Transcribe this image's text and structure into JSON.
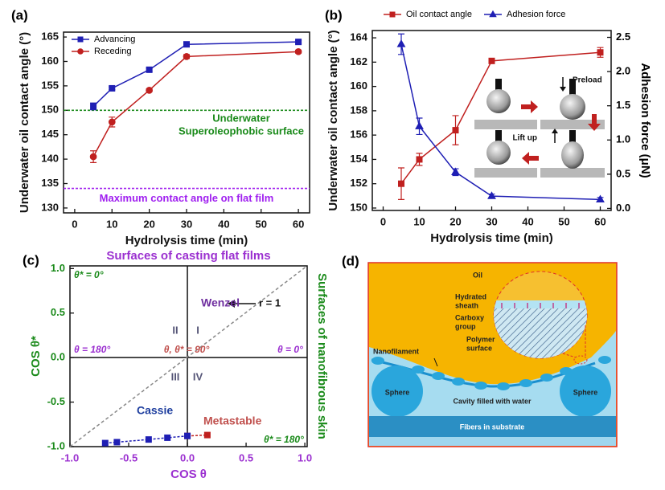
{
  "chart_data": [
    {
      "type": "line",
      "panel_label": "(a)",
      "xlabel": "Hydrolysis time (min)",
      "ylabel": "Underwater oil contact angle (°)",
      "x": [
        5,
        10,
        20,
        30,
        60
      ],
      "xlim": [
        -3,
        63
      ],
      "xticks": [
        0,
        10,
        20,
        30,
        40,
        50,
        60
      ],
      "ylim": [
        129,
        166
      ],
      "yticks": [
        130,
        135,
        140,
        145,
        150,
        155,
        160,
        165
      ],
      "legend": "upper left",
      "series": [
        {
          "name": "Advancing",
          "color": "#1f1fb4",
          "marker": "square",
          "values": [
            150.8,
            154.5,
            158.3,
            163.5,
            164
          ],
          "errors": [
            0.7,
            0.3,
            0.3,
            0.3,
            0.3
          ]
        },
        {
          "name": "Receding",
          "color": "#c0201f",
          "marker": "circle",
          "values": [
            140.5,
            147.6,
            154.1,
            161,
            162
          ],
          "errors": [
            1.2,
            1,
            0.3,
            0.4,
            0.3
          ]
        }
      ],
      "reference_lines": [
        {
          "y": 150,
          "color": "#1a8a1a",
          "labels": [
            "Underwater",
            "Superoleophobic surface"
          ]
        },
        {
          "y": 134,
          "color": "#a020f0",
          "labels": [
            "Maximum contact angle on flat film"
          ]
        }
      ]
    },
    {
      "type": "line",
      "panel_label": "(b)",
      "xlabel": "Hydrolysis time (min)",
      "ylabel": "Underwater oil contact angle (°)",
      "y2label": "Adhesion force (μN)",
      "x": [
        5,
        10,
        20,
        30,
        60
      ],
      "xlim": [
        -3,
        63
      ],
      "xticks": [
        0,
        10,
        20,
        30,
        40,
        50,
        60
      ],
      "ylim": [
        149.8,
        164.6
      ],
      "yticks": [
        150,
        152,
        154,
        156,
        158,
        160,
        162,
        164
      ],
      "y2lim": [
        -0.03,
        2.6
      ],
      "y2ticks": [
        {
          "value": 0,
          "label": "0.0"
        },
        0.5,
        {
          "value": 1,
          "label": "1.0"
        },
        1.5,
        {
          "value": 2,
          "label": "2.0"
        },
        2.5
      ],
      "legend": "top",
      "series": [
        {
          "name": "Oil contact angle",
          "color": "#c0201f",
          "marker": "square",
          "values": [
            152,
            154,
            156.4,
            162.1,
            162.8
          ],
          "errors": [
            1.3,
            0.5,
            1.2,
            0.1,
            0.4
          ]
        },
        {
          "name": "Adhesion force",
          "color": "#1f1fb4",
          "marker": "triangle",
          "axis": "y2",
          "values": [
            2.4,
            1.2,
            0.53,
            0.18,
            0.13
          ],
          "errors": [
            0.15,
            0.12,
            0.05,
            0.03,
            0.03
          ]
        }
      ],
      "annotations": [
        "Preload",
        "Lift up"
      ]
    },
    {
      "type": "line",
      "panel_label": "(c)",
      "title": "Surfaces of casting flat films",
      "right_label": "Surfaces of nanofibrous skin",
      "xlabel": "COS θ",
      "ylabel": "COS θ*",
      "xaxis_color": "#9b30d0",
      "yaxis_color": "#1a8a1a",
      "xlim": [
        -1,
        1.02
      ],
      "xticks": [
        {
          "value": -1,
          "label": "-1.0"
        },
        -0.5,
        {
          "value": 0,
          "label": "0.0"
        },
        0.5,
        {
          "value": 1,
          "label": "1.0"
        }
      ],
      "ylim": [
        -1,
        1.03
      ],
      "yticks": [
        {
          "value": -1,
          "label": "-1.0"
        },
        -0.5,
        {
          "value": 0,
          "label": "0.0"
        },
        0.5,
        {
          "value": 1,
          "label": "1.0"
        }
      ],
      "series": [
        {
          "name": "Metastable",
          "color": "#c0201f",
          "marker": "square",
          "linestyle": "dashed",
          "x": [
            0,
            0.17
          ],
          "values": [
            -0.88,
            -0.87
          ]
        },
        {
          "name": "Cassie",
          "color": "#1f1fb4",
          "marker": "square",
          "linestyle": "dashed",
          "x": [
            -0.7,
            -0.6,
            -0.33,
            -0.17,
            0
          ],
          "values": [
            -0.96,
            -0.95,
            -0.92,
            -0.9,
            -0.88
          ]
        }
      ],
      "annotations": [
        "θ* = 0°",
        "θ = 180°",
        "θ, θ* = 90°",
        "θ = 0°",
        "θ* = 180°",
        "Wenzel",
        "r = 1",
        "I",
        "II",
        "III",
        "IV"
      ]
    }
  ],
  "diagram": {
    "panel_label": "(d)",
    "labels": {
      "oil": "Oil",
      "hydrated_sheath": [
        "Hydrated",
        "sheath"
      ],
      "carboxy_group": [
        "Carboxy",
        "group"
      ],
      "polymer_surface": [
        "Polymer",
        "surface"
      ],
      "nanofilament": "Nanofilament",
      "spheres": [
        "Sphere",
        "Sphere"
      ],
      "cavity": "Cavity filled with water",
      "substrate": "Fibers in substrate"
    }
  }
}
